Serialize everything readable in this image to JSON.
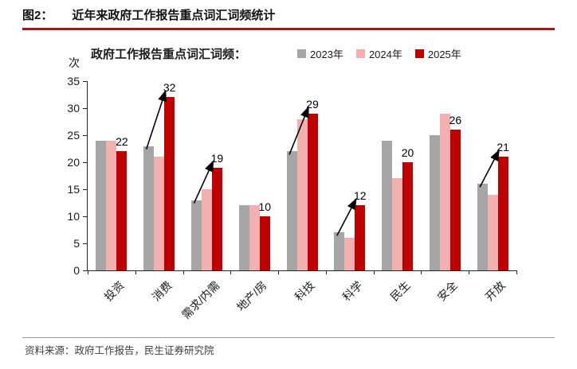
{
  "header": {
    "figure_label": "图2：",
    "title": "近年来政府工作报告重点词汇词频统计"
  },
  "chart_data": {
    "type": "bar",
    "title": "政府工作报告重点词汇词频：",
    "unit_label": "次",
    "categories": [
      "投资",
      "消费",
      "需求/内需",
      "地产/房",
      "科技",
      "科学",
      "民生",
      "安全",
      "开放"
    ],
    "series": [
      {
        "name": "2023年",
        "color": "#a5a5a5",
        "values": [
          24,
          23,
          13,
          12,
          22,
          7,
          24,
          25,
          16
        ]
      },
      {
        "name": "2024年",
        "color": "#f2b1b0",
        "values": [
          24,
          21,
          15,
          12,
          28,
          6,
          17,
          29,
          14
        ]
      },
      {
        "name": "2025年",
        "color": "#c00000",
        "values": [
          22,
          32,
          19,
          10,
          29,
          12,
          20,
          26,
          21
        ]
      }
    ],
    "data_labels": [
      22,
      32,
      19,
      10,
      29,
      12,
      20,
      26,
      21
    ],
    "arrows": [
      false,
      true,
      true,
      false,
      true,
      true,
      false,
      false,
      true
    ],
    "ylim": [
      0,
      35
    ],
    "ytick_step": 5,
    "grid": false,
    "legend_position": "top"
  },
  "footer": {
    "source": "资料来源：政府工作报告，民生证券研究院"
  },
  "colors": {
    "accent": "#c00000",
    "header_rule": "#b01111",
    "footer_rule": "#999999",
    "axis": "#262626",
    "arrow": "#000000"
  }
}
